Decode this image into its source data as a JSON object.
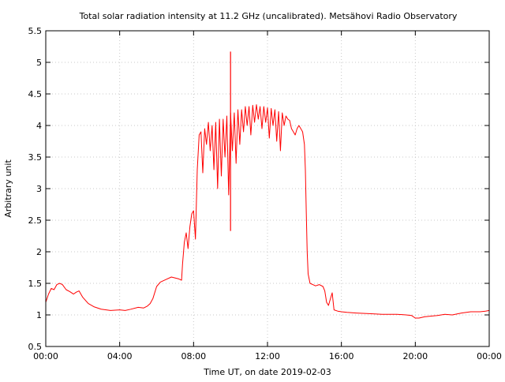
{
  "chart_data": {
    "type": "line",
    "title": "Total solar radiation intensity at 11.2 GHz (uncalibrated). Metsähovi Radio Observatory",
    "xlabel": "Time UT, on date 2019-02-03",
    "ylabel": "Arbitrary unit",
    "xlim": [
      0,
      24
    ],
    "ylim": [
      0.5,
      5.5
    ],
    "x_ticks": [
      0,
      4,
      8,
      12,
      16,
      20,
      24
    ],
    "x_tick_labels": [
      "00:00",
      "04:00",
      "08:00",
      "12:00",
      "16:00",
      "20:00",
      "00:00"
    ],
    "y_ticks": [
      0.5,
      1,
      1.5,
      2,
      2.5,
      3,
      3.5,
      4,
      4.5,
      5,
      5.5
    ],
    "y_tick_labels": [
      "0.5",
      "1",
      "1.5",
      "2",
      "2.5",
      "3",
      "3.5",
      "4",
      "4.5",
      "5",
      "5.5"
    ],
    "grid": true,
    "series_color": "#ff0000",
    "series": [
      {
        "x": [
          0.0,
          0.15,
          0.3,
          0.45,
          0.6,
          0.75,
          0.9,
          1.1,
          1.3,
          1.5,
          1.65,
          1.8,
          2.0,
          2.3,
          2.6,
          3.0,
          3.5,
          4.0,
          4.3,
          4.6,
          5.0,
          5.3,
          5.5,
          5.65,
          5.8,
          6.0,
          6.2,
          6.5,
          6.8,
          7.2,
          7.35,
          7.4,
          7.5,
          7.6,
          7.7,
          7.8,
          7.9,
          8.0,
          8.1,
          8.2,
          8.3,
          8.4,
          8.5,
          8.6,
          8.7,
          8.8,
          8.9,
          9.0,
          9.1,
          9.2,
          9.3,
          9.4,
          9.5,
          9.6,
          9.7,
          9.8,
          9.9,
          10.0,
          10.1,
          10.2,
          10.3,
          10.4,
          10.5,
          10.6,
          10.7,
          10.8,
          10.9,
          11.0,
          11.1,
          11.2,
          11.3,
          11.4,
          11.5,
          11.6,
          11.7,
          11.8,
          11.9,
          12.0,
          12.1,
          12.2,
          12.3,
          12.4,
          12.5,
          12.6,
          12.7,
          12.8,
          12.9,
          13.0,
          13.1,
          13.2,
          13.3,
          13.4,
          13.5,
          13.6,
          13.7,
          13.8,
          13.9,
          14.0,
          14.05,
          14.1,
          14.15,
          14.2,
          14.3,
          14.45,
          14.6,
          14.8,
          15.0,
          15.1,
          15.2,
          15.3,
          15.4,
          15.5,
          15.6,
          15.8,
          16.0,
          16.3,
          16.8,
          17.5,
          18.2,
          19.0,
          19.5,
          19.8,
          20.0,
          20.2,
          20.5,
          20.8,
          21.2,
          21.6,
          22.0,
          22.5,
          23.0,
          23.5,
          23.8,
          24.0
        ],
        "y": [
          1.2,
          1.33,
          1.42,
          1.4,
          1.48,
          1.5,
          1.48,
          1.4,
          1.37,
          1.33,
          1.36,
          1.38,
          1.28,
          1.18,
          1.13,
          1.09,
          1.07,
          1.08,
          1.07,
          1.09,
          1.12,
          1.11,
          1.14,
          1.18,
          1.26,
          1.45,
          1.52,
          1.56,
          1.6,
          1.57,
          1.55,
          1.8,
          2.15,
          2.3,
          2.05,
          2.4,
          2.6,
          2.65,
          2.2,
          3.3,
          3.85,
          3.9,
          3.25,
          3.95,
          3.7,
          4.05,
          3.6,
          4.0,
          3.3,
          4.05,
          3.0,
          4.1,
          3.2,
          4.1,
          3.5,
          4.15,
          2.9,
          4.2,
          3.6,
          4.2,
          3.4,
          4.25,
          3.7,
          4.25,
          3.9,
          4.3,
          4.0,
          4.3,
          3.85,
          4.32,
          4.05,
          4.33,
          4.1,
          4.3,
          3.95,
          4.3,
          4.05,
          4.28,
          3.8,
          4.27,
          4.0,
          4.25,
          3.75,
          4.22,
          3.6,
          4.2,
          4.0,
          4.15,
          4.1,
          4.08,
          3.95,
          3.9,
          3.85,
          3.95,
          4.0,
          3.95,
          3.9,
          3.7,
          3.3,
          2.6,
          2.0,
          1.65,
          1.5,
          1.48,
          1.46,
          1.48,
          1.45,
          1.38,
          1.2,
          1.15,
          1.25,
          1.35,
          1.08,
          1.06,
          1.05,
          1.04,
          1.03,
          1.02,
          1.01,
          1.01,
          1.0,
          0.99,
          0.95,
          0.95,
          0.97,
          0.98,
          0.99,
          1.01,
          1.0,
          1.03,
          1.05,
          1.05,
          1.06,
          1.07
        ]
      }
    ],
    "spike": {
      "x": 10.0,
      "y_top": 5.17,
      "y_bottom": 2.33
    }
  }
}
